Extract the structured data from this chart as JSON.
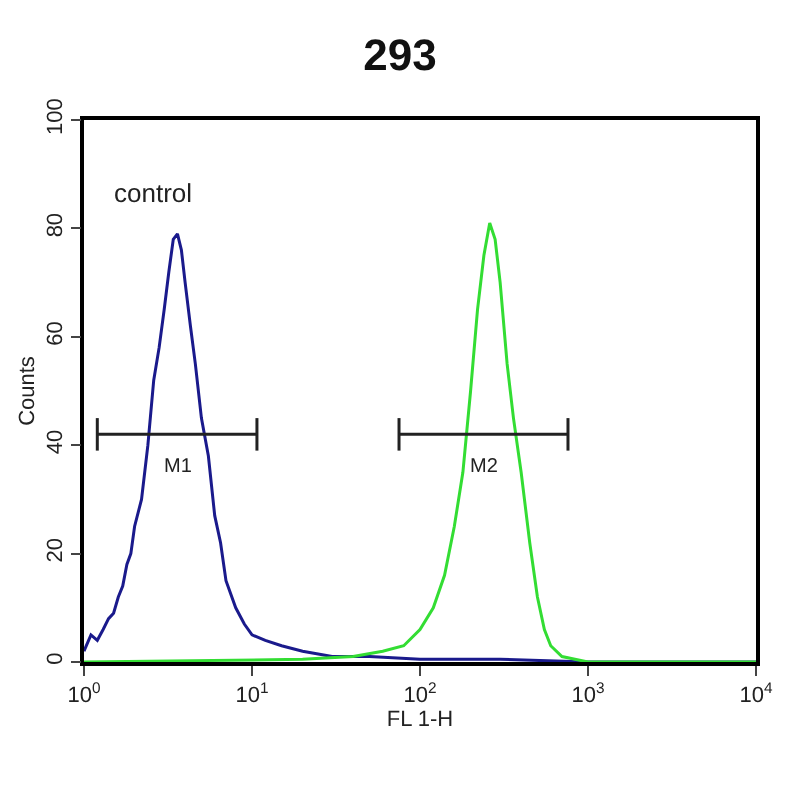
{
  "chart_data": {
    "type": "line",
    "title": "293",
    "xlabel": "FL 1-H",
    "ylabel": "Counts",
    "log": "x",
    "xlim": [
      1,
      10000
    ],
    "ylim": [
      0,
      100
    ],
    "xticks": [
      {
        "value": 1,
        "label": "10$^{0}$"
      },
      {
        "value": 10,
        "label": "10$^{1}$"
      },
      {
        "value": 100,
        "label": "10$^{2}$"
      },
      {
        "value": 1000,
        "label": "10$^{3}$"
      },
      {
        "value": 10000,
        "label": "10$^{4}$"
      }
    ],
    "yticks": [
      0,
      20,
      40,
      60,
      80,
      100
    ],
    "legend": false,
    "marker": "none",
    "line_style": "solid",
    "annotations": [
      "control"
    ],
    "series": [
      {
        "color": "#1a1a8c",
        "x": [
          1,
          1.1,
          1.2,
          1.3,
          1.4,
          1.5,
          1.6,
          1.7,
          1.8,
          1.9,
          2,
          2.2,
          2.4,
          2.6,
          2.8,
          3,
          3.2,
          3.4,
          3.6,
          3.8,
          4,
          4.3,
          4.6,
          5,
          5.5,
          6,
          6.5,
          7,
          8,
          9,
          10,
          12,
          15,
          20,
          30,
          50,
          100,
          300,
          1000,
          10000
        ],
        "values": [
          2,
          5,
          4,
          6,
          8,
          9,
          12,
          14,
          18,
          20,
          25,
          30,
          40,
          52,
          58,
          65,
          72,
          78,
          79,
          76,
          70,
          62,
          55,
          45,
          38,
          27,
          22,
          15,
          10,
          7,
          5,
          4,
          3,
          2,
          1,
          1,
          0.5,
          0.5,
          0,
          0
        ]
      },
      {
        "color": "#33dd33",
        "x": [
          1,
          20,
          40,
          60,
          80,
          100,
          120,
          140,
          160,
          180,
          200,
          220,
          240,
          260,
          280,
          300,
          330,
          360,
          400,
          450,
          500,
          550,
          600,
          700,
          1000,
          10000
        ],
        "values": [
          0,
          0.5,
          1,
          2,
          3,
          6,
          10,
          16,
          25,
          35,
          50,
          65,
          75,
          81,
          78,
          70,
          55,
          45,
          35,
          22,
          12,
          6,
          3,
          1,
          0,
          0
        ]
      },
      {
        "name": "M1",
        "color": "#222222",
        "x": [
          1.2,
          10.7
        ],
        "values": [
          42,
          42
        ],
        "errors": [
          3,
          3
        ]
      },
      {
        "name": "M2",
        "color": "#222222",
        "x": [
          75,
          760
        ],
        "values": [
          42,
          42
        ],
        "errors": [
          3,
          3
        ]
      }
    ]
  }
}
